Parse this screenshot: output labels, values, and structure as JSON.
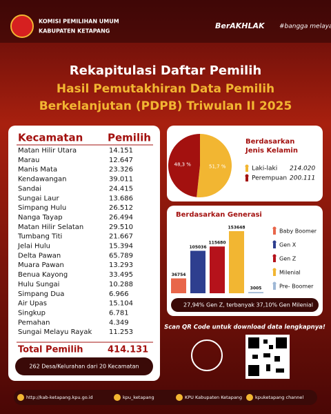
{
  "header": {
    "org_line1": "KOMISI PEMILIHAN UMUM",
    "org_line2": "KABUPATEN KETAPANG",
    "brand1": "BerAKHLAK",
    "brand2": "#bangga melayani bangsa"
  },
  "title": {
    "line1": "Rekapitulasi Daftar Pemilih",
    "line2": "Hasil Pemutakhiran Data Pemilih",
    "line3": "Berkelanjutan (PDPB) Triwulan II 2025"
  },
  "table": {
    "headers": [
      "Kecamatan",
      "Pemilih"
    ],
    "rows": [
      [
        "Matan Hilir Utara",
        "14.151"
      ],
      [
        "Marau",
        "12.647"
      ],
      [
        "Manis Mata",
        "23.326"
      ],
      [
        "Kendawangan",
        "39.011"
      ],
      [
        "Sandai",
        "24.415"
      ],
      [
        "Sungai Laur",
        "13.686"
      ],
      [
        "Simpang Hulu",
        "26.512"
      ],
      [
        "Nanga Tayap",
        "26.494"
      ],
      [
        "Matan Hilir Selatan",
        "29.510"
      ],
      [
        "Tumbang Titi",
        "21.667"
      ],
      [
        "Jelai Hulu",
        "15.394"
      ],
      [
        "Delta Pawan",
        "65.789"
      ],
      [
        "Muara Pawan",
        "13.293"
      ],
      [
        "Benua Kayong",
        "33.495"
      ],
      [
        "Hulu Sungai",
        "10.288"
      ],
      [
        "Simpang Dua",
        "6.966"
      ],
      [
        "Air Upas",
        "15.104"
      ],
      [
        "Singkup",
        "6.781"
      ],
      [
        "Pemahan",
        "4.349"
      ],
      [
        "Sungai Melayu Rayak",
        "11.253"
      ]
    ],
    "total_label": "Total Pemilih",
    "total_value": "414.131",
    "note": "262 Desa/Kelurahan dari 20 Kecamatan"
  },
  "chart_data": [
    {
      "type": "pie",
      "title": [
        "Berdasarkan",
        "Jenis Kelamin"
      ],
      "categories": [
        "Laki-laki",
        "Perempuan"
      ],
      "values": [
        51.7,
        48.3
      ],
      "value_labels": [
        "51,7 %",
        "48,3 %"
      ],
      "colors": [
        "#f2b632",
        "#a3110f"
      ],
      "legend_values": [
        "214.020",
        "200.111"
      ]
    },
    {
      "type": "bar",
      "title": "Berdasarkan Generasi",
      "categories": [
        "Baby Boomer",
        "Gen X",
        "Gen Z",
        "Milenial",
        "Pre- Boomer"
      ],
      "values": [
        36754,
        105036,
        115680,
        153648,
        3005
      ],
      "colors": [
        "#e8664a",
        "#2e3f8f",
        "#b5121b",
        "#f2b632",
        "#9fb8d6"
      ],
      "note": "27,94% Gen Z, terbanyak 37,10% Gen Milenial"
    }
  ],
  "qr_caption": "Scan QR Code untuk download data lengkapnya!",
  "footer": [
    "http://kab-ketapang.kpu.go.id",
    "kpu_ketapang",
    "KPU Kabupaten Ketapang",
    "kpuketapang channel"
  ]
}
